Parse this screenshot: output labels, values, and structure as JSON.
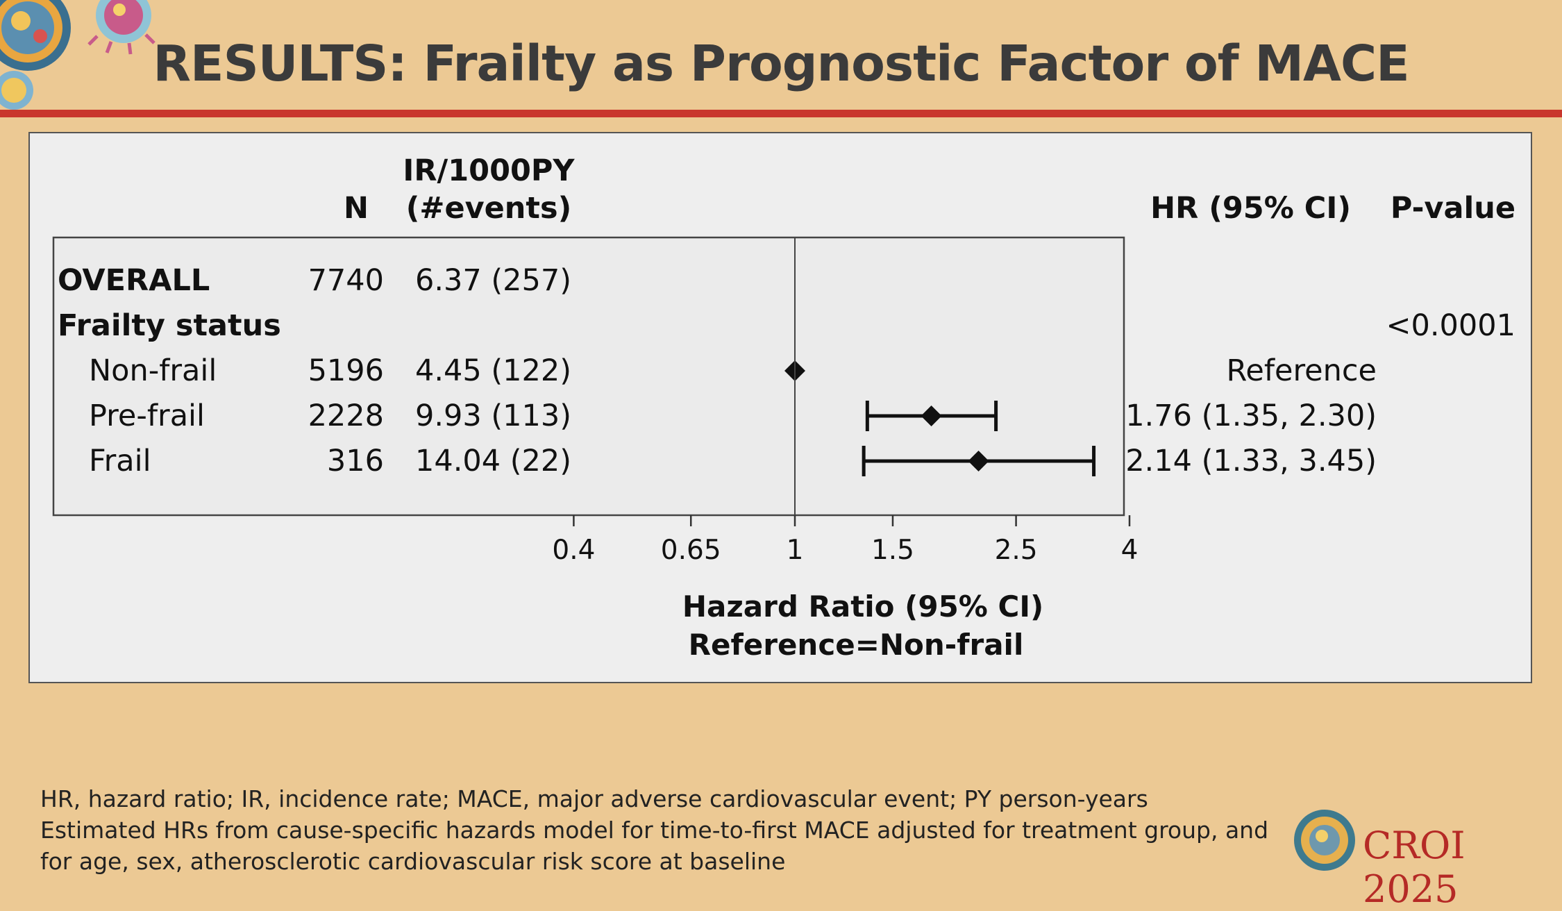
{
  "slide": {
    "title": "RESULTS: Frailty as Prognostic Factor of MACE",
    "footnotes": [
      "HR, hazard ratio; IR, incidence rate; MACE, major adverse cardiovascular event; PY person-years",
      "Estimated HRs from cause-specific hazards model for time-to-first MACE adjusted for treatment group, and",
      "for age, sex, atherosclerotic cardiovascular risk score at baseline"
    ],
    "logo_text": "CROI 2025"
  },
  "colors": {
    "background": "#ecc994",
    "panel": "#eeeeee",
    "title_rule": "#c9362d",
    "logo_text": "#b52a26"
  },
  "chart_data": {
    "type": "forest",
    "columns": {
      "n_header": "N",
      "ir_header_line1": "IR/1000PY",
      "ir_header_line2": "(#events)",
      "hr_header": "HR (95% CI)",
      "p_header": "P-value"
    },
    "rows": [
      {
        "label": "OVERALL",
        "bold": true,
        "indent": false,
        "n": "7740",
        "ir": "6.37 (257)",
        "hr": null,
        "lower": null,
        "upper": null,
        "hr_text": "",
        "p": ""
      },
      {
        "label": "Frailty status",
        "bold": true,
        "indent": false,
        "n": "",
        "ir": "",
        "hr": null,
        "lower": null,
        "upper": null,
        "hr_text": "",
        "p": "<0.0001"
      },
      {
        "label": "Non-frail",
        "bold": false,
        "indent": true,
        "n": "5196",
        "ir": "4.45 (122)",
        "hr": 1.0,
        "lower": null,
        "upper": null,
        "hr_text": "Reference",
        "p": ""
      },
      {
        "label": "Pre-frail",
        "bold": false,
        "indent": true,
        "n": "2228",
        "ir": "9.93 (113)",
        "hr": 1.76,
        "lower": 1.35,
        "upper": 2.3,
        "hr_text": "1.76 (1.35, 2.30)",
        "p": ""
      },
      {
        "label": "Frail",
        "bold": false,
        "indent": true,
        "n": "316",
        "ir": "14.04 (22)",
        "hr": 2.14,
        "lower": 1.33,
        "upper": 3.45,
        "hr_text": "2.14 (1.33, 3.45)",
        "p": ""
      }
    ],
    "x_scale": "log",
    "xlim": [
      0.3,
      4
    ],
    "x_ticks": [
      0.4,
      0.65,
      1,
      1.5,
      2.5,
      4
    ],
    "x_tick_labels": [
      "0.4",
      "0.65",
      "1",
      "1.5",
      "2.5",
      "4"
    ],
    "reference_line": 1,
    "xlabel_line1": "Hazard Ratio (95% CI)",
    "xlabel_line2": "Reference=Non-frail"
  }
}
